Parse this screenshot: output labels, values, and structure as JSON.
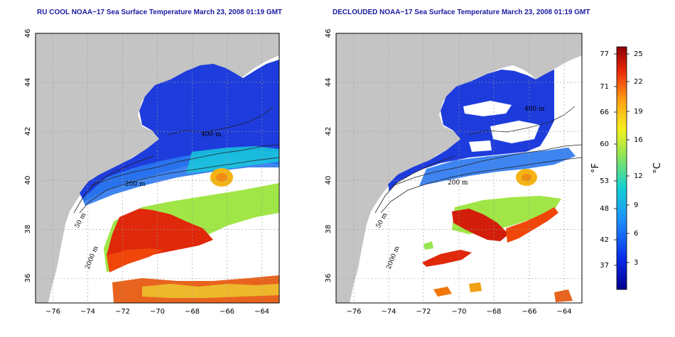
{
  "left_panel": {
    "title": "RU COOL NOAA−17 Sea Surface Temperature March 23, 2008 01:19 GMT",
    "contour_labels": [
      "400 m",
      "200 m",
      "50 m",
      "2000 m"
    ]
  },
  "right_panel": {
    "title": "DECLOUDED NOAA−17 Sea Surface Temperature March 23, 2008 01:19 GMT",
    "contour_labels": [
      "400 m",
      "200 m",
      "50 m",
      "2000 m"
    ]
  },
  "axes": {
    "x_ticks": [
      "−76",
      "−74",
      "−72",
      "−70",
      "−68",
      "−66",
      "−64"
    ],
    "y_ticks": [
      "46",
      "44",
      "42",
      "40",
      "38",
      "36"
    ],
    "lon_range": [
      -77,
      -63
    ],
    "lat_range": [
      35,
      46
    ],
    "grid": true
  },
  "colorbar": {
    "fahrenheit_ticks": [
      "77",
      "71",
      "66",
      "60",
      "53",
      "48",
      "42",
      "37"
    ],
    "celsius_ticks": [
      "25",
      "22",
      "19",
      "16",
      "12",
      "9",
      "6",
      "3"
    ],
    "fahrenheit_label": "°F",
    "celsius_label": "°C"
  },
  "colors": {
    "land": "#c4c4c4",
    "title": "#1a1aa0",
    "cold": "#0a1ed2",
    "warm": "#d21e0a"
  }
}
